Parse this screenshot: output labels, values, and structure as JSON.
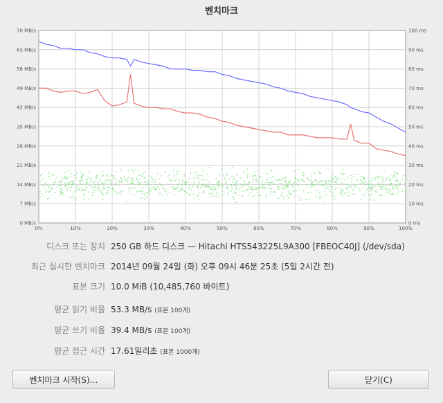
{
  "window": {
    "title": "벤치마크"
  },
  "chart_data": {
    "type": "line",
    "x": [
      0,
      2,
      4,
      6,
      8,
      10,
      12,
      14,
      16,
      18,
      20,
      22,
      24,
      25,
      26,
      28,
      30,
      32,
      34,
      36,
      38,
      40,
      42,
      44,
      46,
      48,
      50,
      52,
      54,
      56,
      58,
      60,
      62,
      64,
      66,
      68,
      70,
      72,
      74,
      76,
      78,
      80,
      82,
      84,
      85,
      86,
      88,
      90,
      92,
      94,
      96,
      98,
      100
    ],
    "x_ticks": [
      "0%",
      "10%",
      "20%",
      "30%",
      "40%",
      "50%",
      "60%",
      "70%",
      "80%",
      "90%",
      "100%"
    ],
    "y_left_ticks": [
      "0 MB/s",
      "7 MB/s",
      "14 MB/s",
      "21 MB/s",
      "28 MB/s",
      "35 MB/s",
      "42 MB/s",
      "49 MB/s",
      "56 MB/s",
      "63 MB/s",
      "70 MB/s"
    ],
    "y_right_ticks": [
      "0 ms",
      "10 ms",
      "20 ms",
      "30 ms",
      "40 ms",
      "50 ms",
      "60 ms",
      "70 ms",
      "80 ms",
      "90 ms",
      "100 ms"
    ],
    "ylim_left": [
      0,
      70
    ],
    "ylim_right": [
      0,
      100
    ],
    "xlim": [
      0,
      100
    ],
    "grid": true,
    "series": [
      {
        "color": "#6b6bff",
        "axis": "left",
        "values": [
          66,
          65,
          64.5,
          63.5,
          63.5,
          63,
          63,
          62,
          61.5,
          60.5,
          60,
          60,
          59.5,
          57,
          59.5,
          58.5,
          58,
          57.5,
          57,
          56,
          56,
          56,
          55.5,
          55.5,
          55,
          55,
          54,
          53.5,
          52.5,
          52,
          51.5,
          51,
          50.5,
          49.5,
          49,
          48,
          47.5,
          47,
          46,
          45.5,
          45,
          44.5,
          44,
          43,
          42,
          41.5,
          40.5,
          40,
          38.5,
          37,
          36,
          34.5,
          33
        ]
      },
      {
        "color": "#e87070",
        "axis": "left",
        "values": [
          49,
          49,
          48,
          47.5,
          48,
          48,
          47,
          47.5,
          48.5,
          44.5,
          42.5,
          43,
          44,
          54,
          43.5,
          42.5,
          42,
          42,
          41.5,
          41.5,
          40.5,
          40,
          40,
          39.5,
          38.5,
          38,
          37,
          36.5,
          35.5,
          35,
          34.5,
          34,
          33.5,
          33,
          33,
          32,
          32,
          32,
          31.5,
          31,
          31,
          31,
          30.5,
          30.5,
          36,
          30,
          29,
          29,
          27,
          26.5,
          26,
          25,
          24.5
        ]
      }
    ],
    "scatter": {
      "color": "#88e088",
      "note_axis": "right",
      "center_ms": 20,
      "spread_ms": 7
    }
  },
  "info": {
    "rows": [
      {
        "label": "디스크 또는 장치",
        "value": "250 GB 하드 디스크 — Hitachi HTS543225L9A300 [FBEOC40J] (/dev/sda)"
      },
      {
        "label": "최근 실시한 벤치마크",
        "value": "2014년 09월 24일 (화) 오후 09시 46분 25초 (5일 2시간 전)"
      },
      {
        "label": "표본 크기",
        "value": "10.0 MiB (10,485,760 바이트)"
      },
      {
        "label": "평균 읽기 비율",
        "value": "53.3 MB/s",
        "note": "(표본 100개)"
      },
      {
        "label": "평균 쓰기 비율",
        "value": "39.4 MB/s",
        "note": "(표본 100개)"
      },
      {
        "label": "평균 접근 시간",
        "value": "17.61밀리초",
        "note": "(표본 1000개)"
      }
    ]
  },
  "buttons": {
    "start": "벤치마크 시작(S)…",
    "close": "닫기(C)"
  }
}
